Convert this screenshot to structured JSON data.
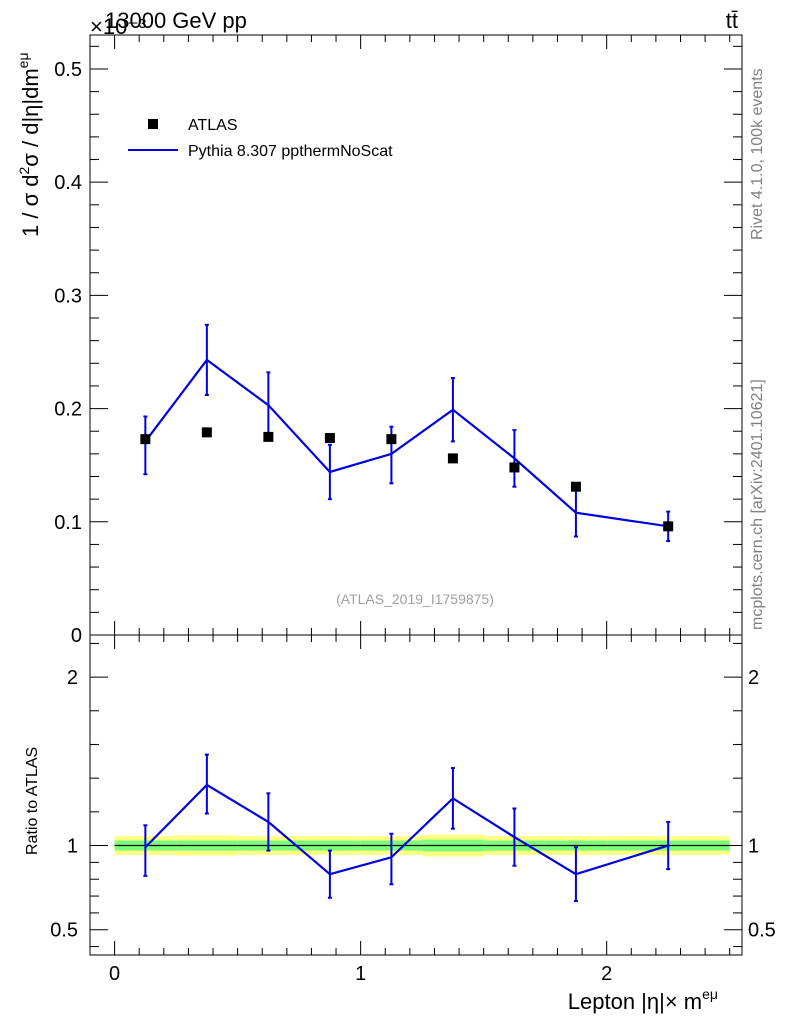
{
  "header": {
    "title_left": "13000 GeV pp",
    "title_right": "tt̄",
    "exponent_label": "×10⁻³"
  },
  "side_labels": {
    "rivet": "Rivet 4.1.0,  100k events",
    "mcplots": "mcplots.cern.ch [arXiv:2401.10621]"
  },
  "legend": {
    "data_label": "ATLAS",
    "mc_label": "Pythia 8.307 ppthermNoScat"
  },
  "analysis_label": "(ATLAS_2019_I1759875)",
  "colors": {
    "mc": "#0000e0",
    "data": "#000000",
    "band_inner": "#7cfc7c",
    "band_outer": "#ffff80"
  },
  "chart_data": [
    {
      "type": "scatter",
      "title": "13000 GeV pp  tt̄",
      "ylabel": "1 / σ  d²σ / d|η|dm^eμ",
      "ylabel_parts": {
        "main": "1 / σ  d",
        "sup2": "2",
        "mid": "σ / d|η|dm",
        "sup_emu": "eμ"
      },
      "xlabel": "",
      "ylim": [
        0,
        0.53
      ],
      "yscale_factor": "×10⁻³",
      "yticks": [
        0,
        0.1,
        0.2,
        0.3,
        0.4,
        0.5
      ],
      "ytick_labels": [
        "0",
        "0.1",
        "0.2",
        "0.3",
        "0.4",
        "0.5"
      ],
      "xlim": [
        -0.1,
        2.55
      ],
      "x_edges": [
        0,
        0.25,
        0.5,
        0.75,
        1.0,
        1.25,
        1.5,
        1.75,
        2.0,
        2.5
      ],
      "series": [
        {
          "name": "ATLAS",
          "kind": "markers",
          "x": [
            0.125,
            0.375,
            0.625,
            0.875,
            1.125,
            1.375,
            1.625,
            1.875,
            2.25
          ],
          "values": [
            0.173,
            0.179,
            0.175,
            0.174,
            0.173,
            0.156,
            0.148,
            0.131,
            0.096
          ]
        },
        {
          "name": "Pythia 8.307 ppthermNoScat",
          "kind": "line",
          "x": [
            0.125,
            0.375,
            0.625,
            0.875,
            1.125,
            1.375,
            1.625,
            1.875,
            2.25
          ],
          "values": [
            0.171,
            0.243,
            0.203,
            0.144,
            0.16,
            0.199,
            0.156,
            0.108,
            0.096
          ],
          "err_low": [
            0.029,
            0.031,
            0.029,
            0.024,
            0.026,
            0.028,
            0.025,
            0.021,
            0.013
          ],
          "err_high": [
            0.022,
            0.031,
            0.029,
            0.024,
            0.024,
            0.028,
            0.025,
            0.021,
            0.013
          ]
        }
      ]
    },
    {
      "type": "line",
      "title": "",
      "ylabel": "Ratio to ATLAS",
      "xlabel": "Lepton |η|× m^eμ",
      "xlabel_parts": {
        "main": "Lepton |η|× m",
        "sup": "eμ"
      },
      "ylim": [
        0.35,
        2.25
      ],
      "yticks": [
        0.5,
        1,
        2
      ],
      "ytick_labels": [
        "0.5",
        "1",
        "2"
      ],
      "xlim": [
        -0.1,
        2.55
      ],
      "xticks": [
        0,
        1,
        2
      ],
      "xtick_labels": [
        "0",
        "1",
        "2"
      ],
      "band": {
        "edges": [
          0,
          0.25,
          0.5,
          0.75,
          1.0,
          1.25,
          1.5,
          1.75,
          2.0,
          2.5
        ],
        "inner": [
          0.03,
          0.03,
          0.03,
          0.03,
          0.03,
          0.035,
          0.03,
          0.03,
          0.03
        ],
        "outer": [
          0.055,
          0.06,
          0.055,
          0.055,
          0.055,
          0.065,
          0.055,
          0.055,
          0.055
        ]
      },
      "series": [
        {
          "name": "Pythia 8.307 ppthermNoScat / ATLAS",
          "x": [
            0.125,
            0.375,
            0.625,
            0.875,
            1.125,
            1.375,
            1.625,
            1.875,
            2.25
          ],
          "values": [
            0.99,
            1.36,
            1.14,
            0.83,
            0.93,
            1.28,
            1.05,
            0.83,
            1.0
          ],
          "err_low": [
            0.17,
            0.17,
            0.17,
            0.14,
            0.16,
            0.18,
            0.17,
            0.16,
            0.14
          ],
          "err_high": [
            0.13,
            0.18,
            0.17,
            0.14,
            0.14,
            0.18,
            0.17,
            0.16,
            0.14
          ]
        }
      ]
    }
  ]
}
